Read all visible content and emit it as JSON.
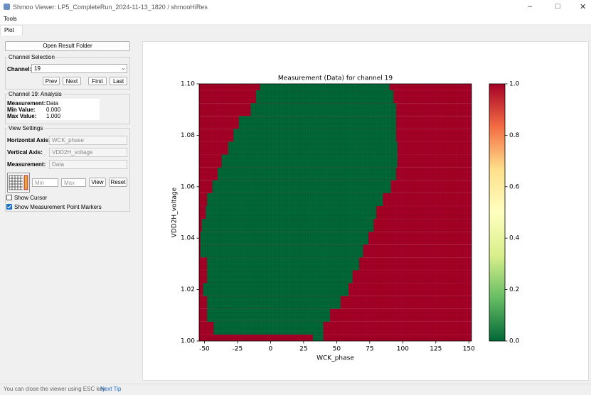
{
  "window": {
    "title": "Shmoo Viewer: LP5_CompleteRun_2024-11-13_1820 / shmooHiRes",
    "menu": "Tools",
    "tab": "Plot"
  },
  "sidebar": {
    "open_button": "Open Result Folder",
    "channel_group": "Channel Selection",
    "channel_label": "Channel:",
    "channel": "19",
    "buttons": [
      "Prev",
      "Next",
      "First",
      "Last"
    ],
    "analysis_group": "Channel 19: Analysis",
    "analysis": [
      [
        "Measurement:",
        "Data"
      ],
      [
        "Min Value:",
        "0.000"
      ],
      [
        "Max Value:",
        "1.000"
      ]
    ],
    "view_group": "View Settings",
    "settings": [
      [
        "Horizontal Axis:",
        "WCK_phase"
      ],
      [
        "Vertical Axis:",
        "VDD2H_voltage"
      ],
      [
        "Measurement:",
        "Data"
      ]
    ],
    "min_placeholder": "Min",
    "max_placeholder": "Max",
    "view_button": "View",
    "reset_button": "Reset",
    "checkboxes": [
      {
        "label": "Show Cursor",
        "checked": false
      },
      {
        "label": "Show Measurement Point Markers",
        "checked": true
      }
    ]
  },
  "status": {
    "text": "You can close the viewer using ESC key.",
    "link": "Next Tip"
  },
  "chart_data": {
    "type": "heatmap",
    "title": "Measurement (Data) for channel 19",
    "x_label": "WCK_phase",
    "y_label": "VDD2H_voltage",
    "xlim": [
      -54,
      152
    ],
    "xticks": [
      -50,
      -25,
      0,
      25,
      50,
      75,
      100,
      125,
      150
    ],
    "ylim": [
      1.0,
      1.1
    ],
    "yticks": [
      {
        "value": 1.0,
        "label": "1.00"
      },
      {
        "value": 1.02,
        "label": "1.02"
      },
      {
        "value": 1.04,
        "label": "1.04"
      },
      {
        "value": 1.06,
        "label": "1.06"
      },
      {
        "value": 1.08,
        "label": "1.08"
      },
      {
        "value": 1.1,
        "label": "1.10"
      }
    ],
    "grid": false,
    "y": [
      1.0,
      1.005,
      1.01,
      1.015,
      1.02,
      1.025,
      1.03,
      1.035,
      1.04,
      1.045,
      1.05,
      1.055,
      1.06,
      1.065,
      1.07,
      1.075,
      1.08,
      1.085,
      1.09,
      1.095,
      1.1
    ],
    "pass_start": [
      32,
      -43,
      -48,
      -48,
      -51,
      -48,
      -48,
      -53,
      -53,
      -52,
      -49,
      -48,
      -44,
      -40,
      -37,
      -32,
      -28,
      -24,
      -15,
      -11,
      -8
    ],
    "pass_end": [
      40,
      40,
      45,
      53,
      59,
      62,
      67,
      70,
      74,
      78,
      80,
      85,
      91,
      95,
      96,
      96,
      95,
      95,
      95,
      93,
      90
    ],
    "colormap": [
      "#006837",
      "#66bd63",
      "#d9ef8b",
      "#ffffbf",
      "#fee08b",
      "#f46d43",
      "#a50026"
    ],
    "colorbar_lim": [
      0,
      1
    ],
    "colorbar_ticks": [
      {
        "value": 0,
        "label": "0.0"
      },
      {
        "value": 0.2,
        "label": "0.2"
      },
      {
        "value": 0.4,
        "label": "0.4"
      },
      {
        "value": 0.6,
        "label": "0.6"
      },
      {
        "value": 0.8,
        "label": "0.8"
      },
      {
        "value": 1,
        "label": "1.0"
      }
    ]
  }
}
